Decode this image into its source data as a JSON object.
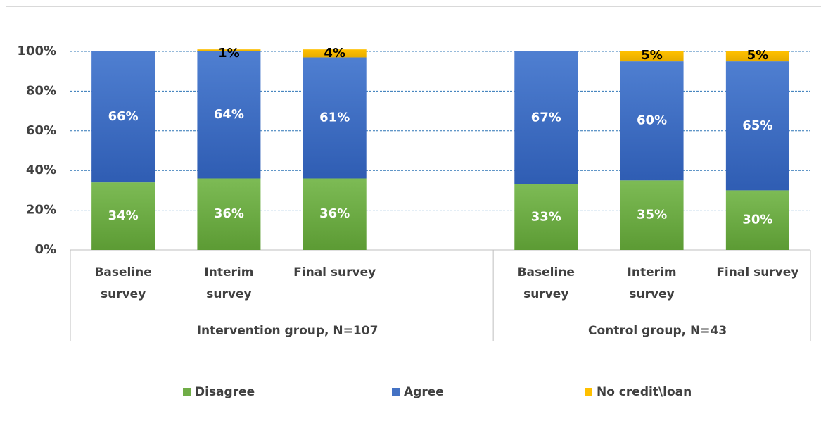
{
  "chart_data": {
    "type": "stacked-bar",
    "groups": [
      {
        "name": "Intervention group, N=107",
        "categories": [
          "Baseline survey",
          "Interim survey",
          "Final survey",
          null
        ]
      },
      {
        "name": "Control group, N=43",
        "categories": [
          "Baseline survey",
          "Interim survey",
          "Final survey"
        ]
      }
    ],
    "series": [
      {
        "name": "Disagree",
        "color": "#70ad47",
        "values": [
          34,
          36,
          36,
          null,
          33,
          35,
          30
        ],
        "value_labels": [
          "34%",
          "36%",
          "36%",
          null,
          "33%",
          "35%",
          "30%"
        ]
      },
      {
        "name": "Agree",
        "color": "#4472c4",
        "values": [
          66,
          64,
          61,
          null,
          67,
          60,
          65
        ],
        "value_labels": [
          "66%",
          "64%",
          "61%",
          null,
          "67%",
          "60%",
          "65%"
        ]
      },
      {
        "name": "No credit\\loan",
        "color": "#ffc000",
        "values": [
          null,
          1,
          4,
          null,
          null,
          5,
          5
        ],
        "value_labels": [
          null,
          "1%",
          "4%",
          null,
          null,
          "5%",
          "5%"
        ]
      }
    ],
    "ylim": [
      0,
      100
    ],
    "yticks": [
      {
        "value": 0,
        "label": "0%"
      },
      {
        "value": 20,
        "label": "20%"
      },
      {
        "value": 40,
        "label": "40%"
      },
      {
        "value": 60,
        "label": "60%"
      },
      {
        "value": 80,
        "label": "80%"
      },
      {
        "value": 100,
        "label": "100%"
      }
    ],
    "grid": true,
    "legend": "bottom"
  }
}
